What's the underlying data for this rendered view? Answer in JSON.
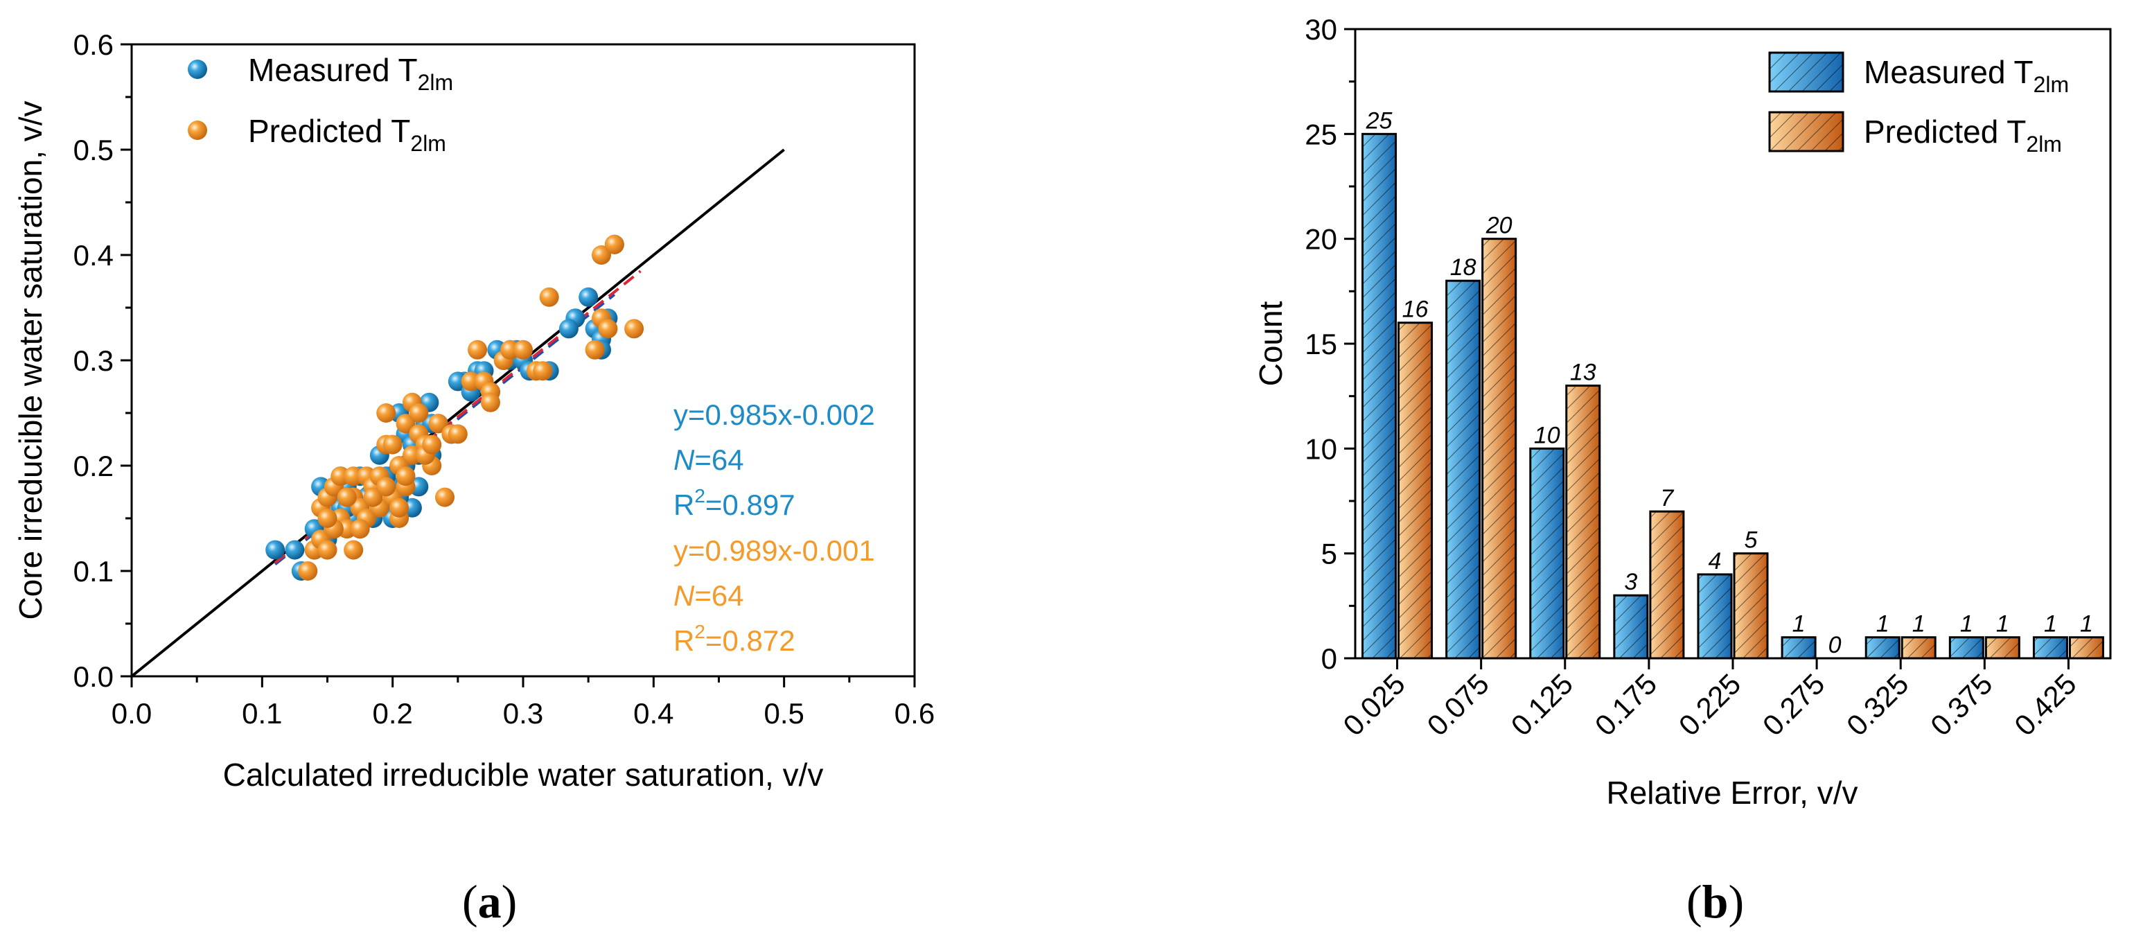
{
  "chart_data": [
    {
      "type": "scatter",
      "panel": "(a)",
      "xlabel": "Calculated irreducible water saturation, v/v",
      "ylabel": "Core irreducible water saturation, v/v",
      "xlim": [
        0.0,
        0.6
      ],
      "ylim": [
        0.0,
        0.6
      ],
      "xticks": [
        "0.0",
        "0.1",
        "0.2",
        "0.3",
        "0.4",
        "0.5",
        "0.6"
      ],
      "yticks": [
        "0.0",
        "0.1",
        "0.2",
        "0.3",
        "0.4",
        "0.5",
        "0.6"
      ],
      "legend_position": "top-left",
      "reference_line": {
        "name": "1:1 line",
        "x": [
          0.0,
          0.5
        ],
        "y": [
          0.0,
          0.5
        ],
        "color": "#000000"
      },
      "series": [
        {
          "name": "Measured T",
          "name_sub": "2lm",
          "color": "#1f8bc6",
          "fit": {
            "slope": 0.985,
            "intercept": -0.002,
            "x_range": [
              0.11,
              0.37
            ]
          },
          "annotation": {
            "equation": "y=0.985x-0.002",
            "n_label": "N",
            "n_value": "=64",
            "r2_label": "R",
            "r2_sup": "2",
            "r2_value": "=0.897"
          },
          "points": [
            [
              0.11,
              0.12
            ],
            [
              0.125,
              0.12
            ],
            [
              0.13,
              0.1
            ],
            [
              0.14,
              0.14
            ],
            [
              0.145,
              0.18
            ],
            [
              0.15,
              0.15
            ],
            [
              0.155,
              0.17
            ],
            [
              0.16,
              0.16
            ],
            [
              0.165,
              0.18
            ],
            [
              0.17,
              0.15
            ],
            [
              0.175,
              0.19
            ],
            [
              0.18,
              0.17
            ],
            [
              0.185,
              0.18
            ],
            [
              0.19,
              0.19
            ],
            [
              0.195,
              0.16
            ],
            [
              0.2,
              0.18
            ],
            [
              0.205,
              0.25
            ],
            [
              0.21,
              0.23
            ],
            [
              0.215,
              0.16
            ],
            [
              0.22,
              0.18
            ],
            [
              0.225,
              0.22
            ],
            [
              0.228,
              0.26
            ],
            [
              0.23,
              0.21
            ],
            [
              0.235,
              0.24
            ],
            [
              0.21,
              0.2
            ],
            [
              0.19,
              0.21
            ],
            [
              0.215,
              0.22
            ],
            [
              0.225,
              0.24
            ],
            [
              0.2,
              0.15
            ],
            [
              0.175,
              0.14
            ],
            [
              0.15,
              0.13
            ],
            [
              0.16,
              0.19
            ],
            [
              0.245,
              0.23
            ],
            [
              0.255,
              0.28
            ],
            [
              0.265,
              0.29
            ],
            [
              0.27,
              0.29
            ],
            [
              0.275,
              0.27
            ],
            [
              0.28,
              0.31
            ],
            [
              0.285,
              0.3
            ],
            [
              0.29,
              0.3
            ],
            [
              0.295,
              0.31
            ],
            [
              0.3,
              0.3
            ],
            [
              0.305,
              0.29
            ],
            [
              0.31,
              0.29
            ],
            [
              0.32,
              0.29
            ],
            [
              0.34,
              0.34
            ],
            [
              0.35,
              0.36
            ],
            [
              0.355,
              0.33
            ],
            [
              0.36,
              0.32
            ],
            [
              0.36,
              0.31
            ],
            [
              0.365,
              0.34
            ],
            [
              0.37,
              0.41
            ],
            [
              0.14,
              0.12
            ],
            [
              0.155,
              0.14
            ],
            [
              0.165,
              0.16
            ],
            [
              0.185,
              0.15
            ],
            [
              0.195,
              0.19
            ],
            [
              0.205,
              0.17
            ],
            [
              0.22,
              0.21
            ],
            [
              0.23,
              0.24
            ],
            [
              0.25,
              0.28
            ],
            [
              0.26,
              0.27
            ],
            [
              0.29,
              0.31
            ],
            [
              0.335,
              0.33
            ]
          ]
        },
        {
          "name": "Predicted T",
          "name_sub": "2lm",
          "color": "#f39a2b",
          "fit": {
            "slope": 0.989,
            "intercept": -0.001,
            "x_range": [
              0.11,
              0.39
            ]
          },
          "annotation": {
            "equation": "y=0.989x-0.001",
            "n_label": "N",
            "n_value": "=64",
            "r2_label": "R",
            "r2_sup": "2",
            "r2_value": "=0.872"
          },
          "points": [
            [
              0.135,
              0.1
            ],
            [
              0.14,
              0.12
            ],
            [
              0.145,
              0.13
            ],
            [
              0.145,
              0.16
            ],
            [
              0.15,
              0.17
            ],
            [
              0.15,
              0.12
            ],
            [
              0.155,
              0.18
            ],
            [
              0.16,
              0.15
            ],
            [
              0.16,
              0.19
            ],
            [
              0.165,
              0.14
            ],
            [
              0.17,
              0.17
            ],
            [
              0.17,
              0.19
            ],
            [
              0.175,
              0.16
            ],
            [
              0.18,
              0.15
            ],
            [
              0.18,
              0.19
            ],
            [
              0.185,
              0.18
            ],
            [
              0.19,
              0.16
            ],
            [
              0.19,
              0.19
            ],
            [
              0.195,
              0.22
            ],
            [
              0.195,
              0.25
            ],
            [
              0.2,
              0.17
            ],
            [
              0.2,
              0.22
            ],
            [
              0.205,
              0.2
            ],
            [
              0.205,
              0.15
            ],
            [
              0.21,
              0.18
            ],
            [
              0.21,
              0.24
            ],
            [
              0.215,
              0.21
            ],
            [
              0.215,
              0.26
            ],
            [
              0.22,
              0.25
            ],
            [
              0.22,
              0.23
            ],
            [
              0.225,
              0.22
            ],
            [
              0.23,
              0.2
            ],
            [
              0.235,
              0.24
            ],
            [
              0.24,
              0.17
            ],
            [
              0.245,
              0.23
            ],
            [
              0.25,
              0.23
            ],
            [
              0.26,
              0.28
            ],
            [
              0.265,
              0.31
            ],
            [
              0.27,
              0.28
            ],
            [
              0.275,
              0.27
            ],
            [
              0.275,
              0.26
            ],
            [
              0.285,
              0.3
            ],
            [
              0.29,
              0.31
            ],
            [
              0.3,
              0.31
            ],
            [
              0.31,
              0.29
            ],
            [
              0.315,
              0.29
            ],
            [
              0.32,
              0.36
            ],
            [
              0.355,
              0.31
            ],
            [
              0.36,
              0.4
            ],
            [
              0.36,
              0.34
            ],
            [
              0.365,
              0.33
            ],
            [
              0.37,
              0.41
            ],
            [
              0.385,
              0.33
            ],
            [
              0.155,
              0.14
            ],
            [
              0.165,
              0.17
            ],
            [
              0.175,
              0.14
            ],
            [
              0.185,
              0.17
            ],
            [
              0.195,
              0.18
            ],
            [
              0.21,
              0.19
            ],
            [
              0.225,
              0.21
            ],
            [
              0.17,
              0.12
            ],
            [
              0.15,
              0.15
            ],
            [
              0.205,
              0.16
            ],
            [
              0.23,
              0.22
            ]
          ]
        }
      ]
    },
    {
      "type": "bar",
      "panel": "(b)",
      "xlabel": "Relative Error, v/v",
      "ylabel": "Count",
      "ylim": [
        0,
        30
      ],
      "yticks": [
        "0",
        "5",
        "10",
        "15",
        "20",
        "25",
        "30"
      ],
      "legend_position": "top-right",
      "categories": [
        "0.025",
        "0.075",
        "0.125",
        "0.175",
        "0.225",
        "0.275",
        "0.325",
        "0.375",
        "0.425"
      ],
      "series": [
        {
          "name": "Measured T",
          "name_sub": "2lm",
          "color_light": "#6ec5f0",
          "color_dark": "#1a6fb8",
          "values": [
            25,
            18,
            10,
            3,
            4,
            1,
            1,
            1,
            1
          ],
          "labels": [
            "25",
            "18",
            "10",
            "3",
            "4",
            "1",
            "1",
            "1",
            "1"
          ]
        },
        {
          "name": "Predicted T",
          "name_sub": "2lm",
          "color_light": "#fbc98a",
          "color_dark": "#c8631c",
          "values": [
            16,
            20,
            13,
            7,
            5,
            0,
            1,
            1,
            1
          ],
          "labels": [
            "16",
            "20",
            "13",
            "7",
            "5",
            "0",
            "1",
            "1",
            "1"
          ]
        }
      ]
    }
  ],
  "panel_labels": {
    "a_open": "(",
    "a_letter": "a",
    "a_close": ")",
    "b_open": "(",
    "b_letter": "b",
    "b_close": ")"
  }
}
